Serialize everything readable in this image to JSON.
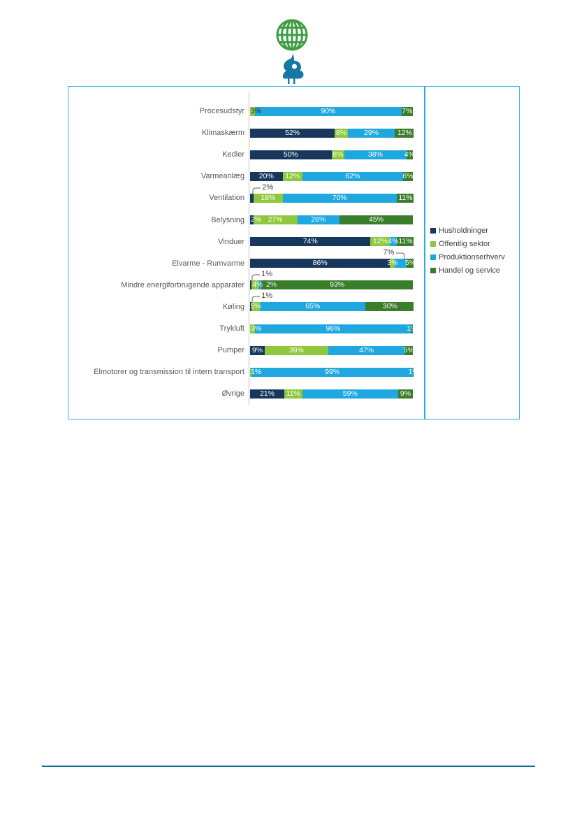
{
  "logo": {
    "description": "globe-and-bird-logo",
    "globe_color": "#3F9E44",
    "bird_color": "#1577A5"
  },
  "chart_style": {
    "border_color": "#29ABE2",
    "axis_color": "#BFBFBF",
    "category_label_color": "#595959",
    "bar_label_color": "#ffffff",
    "callout_text_color": "#404040",
    "leader_line_color": "#7F7F7F"
  },
  "footer": {
    "rule_color": "#0C6B8E"
  },
  "chart_data": {
    "type": "bar",
    "orientation": "horizontal",
    "stacked": true,
    "value_unit": "%",
    "xlim": [
      0,
      100
    ],
    "grid": false,
    "legend_position": "right",
    "categories": [
      "Procesudstyr",
      "Klimaskærm",
      "Kedler",
      "Varmeanlæg",
      "Ventilation",
      "Belysning",
      "Vinduer",
      "Elvarme - Rumvarme",
      "Mindre energiforbrugende apparater",
      "Køling",
      "Trykluft",
      "Pumper",
      "Elmotorer og transmission til intern transport",
      "Øvrige"
    ],
    "series": [
      {
        "name": "Husholdninger",
        "color": "#17375D",
        "values": [
          0,
          52,
          50,
          20,
          2,
          2,
          74,
          86,
          1,
          1,
          0,
          9,
          0,
          21
        ]
      },
      {
        "name": "Offentlig sektor",
        "color": "#8FC73E",
        "values": [
          3,
          8,
          8,
          12,
          18,
          27,
          12,
          3,
          4,
          5,
          3,
          39,
          1,
          11
        ]
      },
      {
        "name": "Produktionserhverv",
        "color": "#1FA8DF",
        "values": [
          90,
          29,
          38,
          62,
          70,
          26,
          4,
          7,
          2,
          65,
          96,
          47,
          99,
          59
        ]
      },
      {
        "name": "Handel og service",
        "color": "#3A7D2B",
        "values": [
          7,
          12,
          4,
          6,
          11,
          45,
          11,
          5,
          93,
          30,
          1,
          5,
          1,
          9
        ]
      }
    ],
    "hide_labels": [
      [
        4,
        0
      ],
      [
        7,
        2
      ],
      [
        8,
        0
      ],
      [
        8,
        2
      ],
      [
        9,
        0
      ]
    ],
    "dark_labels": [
      [
        0,
        1
      ]
    ],
    "annotations": [
      {
        "row": 4,
        "series": 0,
        "text": "2%",
        "kind": "above",
        "target_pct": 1,
        "side": "left"
      },
      {
        "row": 7,
        "series": 2,
        "text": "7%",
        "kind": "above",
        "target_pct": 95,
        "side": "right"
      },
      {
        "row": 8,
        "series": 0,
        "text": "1%",
        "kind": "above",
        "target_pct": 0.5,
        "side": "left"
      },
      {
        "row": 8,
        "series": 2,
        "text": "2%",
        "kind": "inline",
        "target_pct": 6
      },
      {
        "row": 9,
        "series": 0,
        "text": "1%",
        "kind": "above",
        "target_pct": 0.5,
        "side": "left"
      }
    ]
  }
}
